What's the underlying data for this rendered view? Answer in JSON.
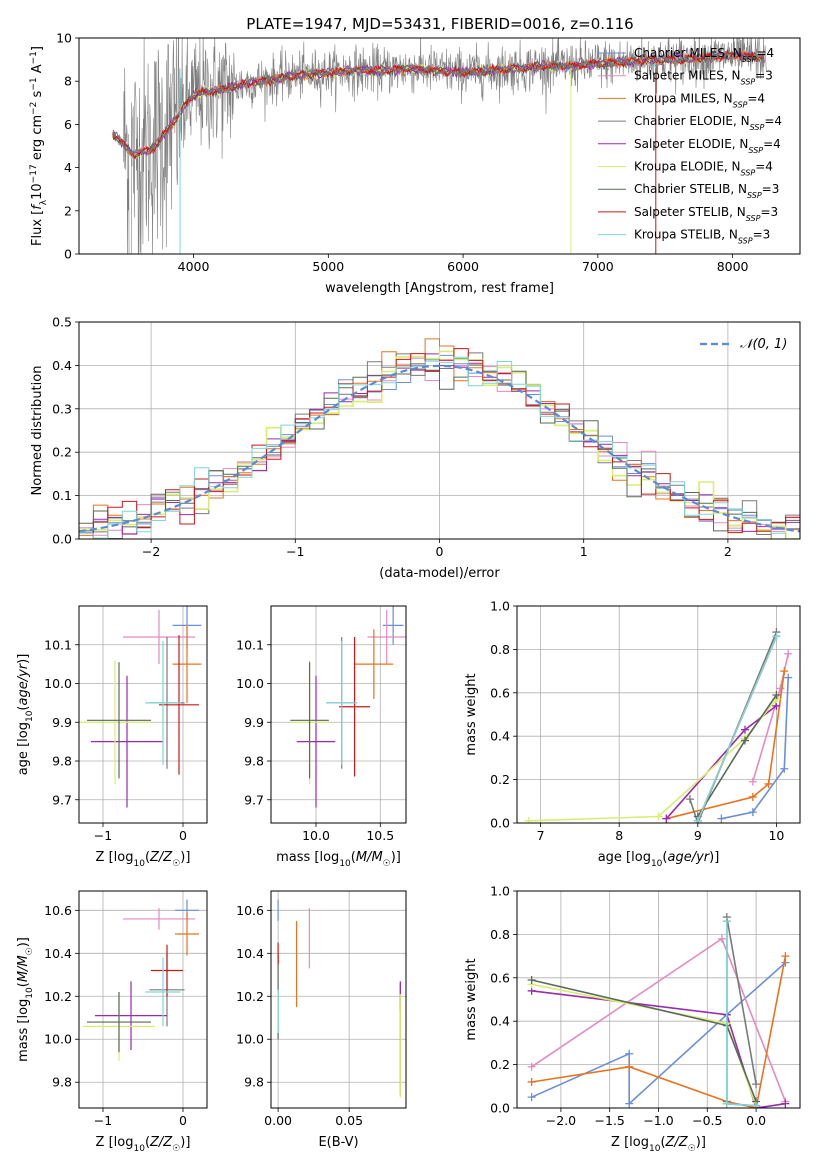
{
  "figure_title": "PLATE=1947, MJD=53431, FIBERID=0016, z=0.116",
  "colors": {
    "chabrier_miles": "#6a8fd8",
    "salpeter_miles": "#e58ac2",
    "kroupa_miles": "#e8731c",
    "chabrier_elodie": "#7a7a7a",
    "salpeter_elodie": "#9a2ab0",
    "kroupa_elodie": "#d8ee70",
    "chabrier_stelib": "#5a6a5a",
    "salpeter_stelib": "#c81818",
    "kroupa_stelib": "#7fd6d6",
    "normal_curve": "#5b8bd5",
    "grid": "#b0b0b0"
  },
  "chart_data": [
    {
      "id": "spectrum",
      "type": "line",
      "title": "PLATE=1947, MJD=53431, FIBERID=0016, z=0.116",
      "xlabel": "wavelength [Angstrom, rest frame]",
      "ylabel": "Flux [f_λ 10^-17 erg cm^-2 s^-1 A^-1]",
      "xlim": [
        3150,
        8500
      ],
      "ylim": [
        0,
        10
      ],
      "xticks": [
        "4000",
        "5000",
        "6000",
        "7000",
        "8000"
      ],
      "yticks": [
        "0",
        "2",
        "4",
        "6",
        "8",
        "10"
      ],
      "grid": false,
      "legend_position": "right",
      "legend": [
        "Chabrier MILES, N_SSP=4",
        "Salpeter MILES, N_SSP=3",
        "Kroupa MILES, N_SSP=4",
        "Chabrier ELODIE, N_SSP=4",
        "Salpeter ELODIE, N_SSP=4",
        "Kroupa ELODIE, N_SSP=4",
        "Chabrier STELIB, N_SSP=3",
        "Salpeter STELIB, N_SSP=3",
        "Kroupa STELIB, N_SSP=3"
      ],
      "continuum": {
        "x": [
          3400,
          3550,
          3700,
          3850,
          4000,
          4200,
          4400,
          4600,
          4800,
          5000,
          5200,
          5400,
          5600,
          5800,
          6000,
          6200,
          6400,
          6600,
          6800,
          7000,
          7200,
          7400,
          7600,
          7800,
          8000,
          8250
        ],
        "y": [
          5.6,
          4.6,
          4.9,
          6.1,
          7.4,
          7.6,
          7.9,
          8.1,
          8.3,
          8.4,
          8.5,
          8.5,
          8.6,
          8.5,
          8.4,
          8.5,
          8.6,
          8.7,
          8.7,
          8.8,
          8.9,
          9.0,
          9.0,
          9.1,
          9.2,
          9.1
        ]
      }
    },
    {
      "id": "residuals",
      "type": "histogram",
      "xlabel": "(data-model)/error",
      "ylabel": "Normed distribution",
      "xlim": [
        -2.5,
        2.5
      ],
      "ylim": [
        0,
        0.5
      ],
      "xticks": [
        "−2",
        "−1",
        "0",
        "1",
        "2"
      ],
      "yticks": [
        "0.0",
        "0.1",
        "0.2",
        "0.3",
        "0.4",
        "0.5"
      ],
      "grid": true,
      "legend_position": "top-right",
      "legend": [
        "𝒩(0, 1)"
      ],
      "bin_width": 0.1,
      "normal_curve": {
        "mean": 0,
        "sigma": 1
      }
    },
    {
      "id": "age_vs_Z",
      "type": "errorbar",
      "xlabel": "Z [log10(Z/Z☉)]",
      "ylabel": "age  [log10(age/yr)]",
      "xlim": [
        -1.3,
        0.3
      ],
      "ylim": [
        9.64,
        10.2
      ],
      "xticks": [
        "−1",
        "0"
      ],
      "yticks": [
        "9.7",
        "9.8",
        "9.9",
        "10.0",
        "10.1"
      ],
      "grid": true,
      "points": [
        {
          "series": "Chabrier MILES",
          "x": 0.05,
          "xerr": 0.18,
          "y": 10.15,
          "yerr": 0.06
        },
        {
          "series": "Salpeter MILES",
          "x": -0.3,
          "xerr": 0.45,
          "y": 10.12,
          "yerr": 0.07
        },
        {
          "series": "Kroupa MILES",
          "x": 0.05,
          "xerr": 0.18,
          "y": 10.05,
          "yerr": 0.1
        },
        {
          "series": "Chabrier ELODIE",
          "x": -0.2,
          "xerr": 0.22,
          "y": 9.95,
          "yerr": 0.17
        },
        {
          "series": "Salpeter ELODIE",
          "x": -0.7,
          "xerr": 0.45,
          "y": 9.85,
          "yerr": 0.17
        },
        {
          "series": "Kroupa ELODIE",
          "x": -0.85,
          "xerr": 0.45,
          "y": 9.9,
          "yerr": 0.16
        },
        {
          "series": "Chabrier STELIB",
          "x": -0.8,
          "xerr": 0.4,
          "y": 9.905,
          "yerr": 0.15
        },
        {
          "series": "Salpeter STELIB",
          "x": -0.05,
          "xerr": 0.25,
          "y": 9.945,
          "yerr": 0.18
        },
        {
          "series": "Kroupa STELIB",
          "x": -0.25,
          "xerr": 0.22,
          "y": 9.95,
          "yerr": 0.16
        }
      ]
    },
    {
      "id": "age_vs_mass",
      "type": "errorbar",
      "xlabel": "mass [log10(M/M☉)]",
      "ylabel": "",
      "xlim": [
        9.65,
        10.7
      ],
      "ylim": [
        9.64,
        10.2
      ],
      "xticks": [
        "10.0",
        "10.5"
      ],
      "yticks": [
        "9.7",
        "9.8",
        "9.9",
        "10.0",
        "10.1"
      ],
      "grid": true,
      "points": [
        {
          "series": "Chabrier MILES",
          "x": 10.6,
          "xerr": 0.08,
          "y": 10.15,
          "yerr": 0.05
        },
        {
          "series": "Salpeter MILES",
          "x": 10.55,
          "xerr": 0.15,
          "y": 10.12,
          "yerr": 0.07
        },
        {
          "series": "Kroupa MILES",
          "x": 10.45,
          "xerr": 0.15,
          "y": 10.05,
          "yerr": 0.09
        },
        {
          "series": "Chabrier ELODIE",
          "x": 10.2,
          "xerr": 0.12,
          "y": 9.95,
          "yerr": 0.17
        },
        {
          "series": "Salpeter ELODIE",
          "x": 10.0,
          "xerr": 0.15,
          "y": 9.85,
          "yerr": 0.17
        },
        {
          "series": "Kroupa ELODIE",
          "x": 9.95,
          "xerr": 0.15,
          "y": 9.9,
          "yerr": 0.16
        },
        {
          "series": "Chabrier STELIB",
          "x": 9.95,
          "xerr": 0.15,
          "y": 9.905,
          "yerr": 0.15
        },
        {
          "series": "Salpeter STELIB",
          "x": 10.3,
          "xerr": 0.12,
          "y": 9.94,
          "yerr": 0.18
        },
        {
          "series": "Kroupa STELIB",
          "x": 10.2,
          "xerr": 0.12,
          "y": 9.95,
          "yerr": 0.16
        }
      ]
    },
    {
      "id": "mass_weight_vs_age",
      "type": "line",
      "xlabel": "age  [log10(age/yr)]",
      "ylabel": "mass weight",
      "xlim": [
        6.7,
        10.3
      ],
      "ylim": [
        0,
        1
      ],
      "xticks": [
        "7",
        "8",
        "9",
        "10"
      ],
      "yticks": [
        "0.0",
        "0.2",
        "0.4",
        "0.6",
        "0.8",
        "1.0"
      ],
      "grid": true,
      "series": [
        {
          "name": "Chabrier MILES",
          "x": [
            9.3,
            9.7,
            10.1,
            10.15
          ],
          "y": [
            0.02,
            0.05,
            0.25,
            0.67
          ]
        },
        {
          "name": "Salpeter MILES",
          "x": [
            9.7,
            10.05,
            10.15
          ],
          "y": [
            0.19,
            0.62,
            0.78
          ]
        },
        {
          "name": "Kroupa MILES",
          "x": [
            8.6,
            9.7,
            9.9,
            10.1
          ],
          "y": [
            0.02,
            0.12,
            0.18,
            0.7
          ]
        },
        {
          "name": "Chabrier ELODIE",
          "x": [
            8.9,
            9.0,
            10.0
          ],
          "y": [
            0.11,
            0.0,
            0.88
          ]
        },
        {
          "name": "Salpeter ELODIE",
          "x": [
            8.6,
            9.6,
            10.0
          ],
          "y": [
            0.02,
            0.43,
            0.54
          ]
        },
        {
          "name": "Kroupa ELODIE",
          "x": [
            6.85,
            8.5,
            9.6,
            10.0
          ],
          "y": [
            0.01,
            0.03,
            0.39,
            0.57
          ]
        },
        {
          "name": "Chabrier STELIB",
          "x": [
            9.0,
            9.6,
            10.0
          ],
          "y": [
            0.03,
            0.38,
            0.59
          ]
        },
        {
          "name": "Salpeter STELIB",
          "x": [
            9.0,
            10.0
          ],
          "y": [
            0.01,
            0.86
          ]
        },
        {
          "name": "Kroupa STELIB",
          "x": [
            9.0,
            10.0
          ],
          "y": [
            0.01,
            0.86
          ]
        }
      ]
    },
    {
      "id": "mass_vs_Z",
      "type": "errorbar",
      "xlabel": "Z [log10(Z/Z☉)]",
      "ylabel": "mass [log10(M/M☉)]",
      "xlim": [
        -1.3,
        0.3
      ],
      "ylim": [
        9.68,
        10.69
      ],
      "xticks": [
        "−1",
        "0"
      ],
      "yticks": [
        "9.8",
        "10.0",
        "10.2",
        "10.4",
        "10.6"
      ],
      "grid": true,
      "points": [
        {
          "series": "Chabrier MILES",
          "x": 0.05,
          "xerr": 0.15,
          "y": 10.6,
          "yerr": 0.05
        },
        {
          "series": "Salpeter MILES",
          "x": -0.3,
          "xerr": 0.45,
          "y": 10.56,
          "yerr": 0.05
        },
        {
          "series": "Kroupa MILES",
          "x": 0.05,
          "xerr": 0.15,
          "y": 10.49,
          "yerr": 0.1
        },
        {
          "series": "Chabrier ELODIE",
          "x": -0.2,
          "xerr": 0.22,
          "y": 10.23,
          "yerr": 0.17
        },
        {
          "series": "Salpeter ELODIE",
          "x": -0.65,
          "xerr": 0.45,
          "y": 10.11,
          "yerr": 0.16
        },
        {
          "series": "Kroupa ELODIE",
          "x": -0.8,
          "xerr": 0.45,
          "y": 10.06,
          "yerr": 0.16
        },
        {
          "series": "Chabrier STELIB",
          "x": -0.8,
          "xerr": 0.4,
          "y": 10.08,
          "yerr": 0.14
        },
        {
          "series": "Salpeter STELIB",
          "x": -0.2,
          "xerr": 0.2,
          "y": 10.32,
          "yerr": 0.12
        },
        {
          "series": "Kroupa STELIB",
          "x": -0.25,
          "xerr": 0.22,
          "y": 10.22,
          "yerr": 0.16
        }
      ]
    },
    {
      "id": "mass_vs_ebv",
      "type": "errorbar",
      "xlabel": "E(B-V)",
      "ylabel": "",
      "xlim": [
        -0.005,
        0.09
      ],
      "ylim": [
        9.68,
        10.69
      ],
      "xticks": [
        "0.00",
        "0.05"
      ],
      "yticks": [
        "9.8",
        "10.0",
        "10.2",
        "10.4",
        "10.6"
      ],
      "grid": true,
      "points": [
        {
          "series": "Chabrier MILES",
          "x": 0.0,
          "xerr": 0,
          "y": 10.6,
          "yerr": 0.05
        },
        {
          "series": "Salpeter MILES",
          "x": 0.022,
          "xerr": 0,
          "y": 10.47,
          "yerr": 0.14
        },
        {
          "series": "Kroupa MILES",
          "x": 0.013,
          "xerr": 0,
          "y": 10.35,
          "yerr": 0.2
        },
        {
          "series": "Chabrier ELODIE",
          "x": 0.086,
          "xerr": 0,
          "y": 10.0,
          "yerr": 0.26
        },
        {
          "series": "Salpeter ELODIE",
          "x": 0.086,
          "xerr": 0,
          "y": 10.2,
          "yerr": 0.07
        },
        {
          "series": "Kroupa ELODIE",
          "x": 0.086,
          "xerr": 0,
          "y": 9.97,
          "yerr": 0.24
        },
        {
          "series": "Chabrier STELIB",
          "x": 0.0,
          "xerr": 0,
          "y": 10.2,
          "yerr": 0.2
        },
        {
          "series": "Salpeter STELIB",
          "x": 0.0,
          "xerr": 0,
          "y": 10.4,
          "yerr": 0.05
        },
        {
          "series": "Kroupa STELIB",
          "x": 0.0,
          "xerr": 0,
          "y": 10.13,
          "yerr": 0.1
        }
      ]
    },
    {
      "id": "mass_weight_vs_Z",
      "type": "line",
      "xlabel": "Z [log10(Z/Z☉)]",
      "ylabel": "mass weight",
      "xlim": [
        -2.45,
        0.45
      ],
      "ylim": [
        0,
        1
      ],
      "xticks": [
        "−2.0",
        "−1.5",
        "−1.0",
        "−0.5",
        "0.0"
      ],
      "yticks": [
        "0.0",
        "0.2",
        "0.4",
        "0.6",
        "0.8",
        "1.0"
      ],
      "grid": true,
      "series": [
        {
          "name": "Chabrier MILES",
          "x": [
            -2.3,
            -1.3,
            -1.3,
            -0.3,
            0.3
          ],
          "y": [
            0.05,
            0.25,
            0.02,
            0.43,
            0.67
          ]
        },
        {
          "name": "Salpeter MILES",
          "x": [
            -2.3,
            -0.35,
            0.3
          ],
          "y": [
            0.19,
            0.78,
            0.03
          ]
        },
        {
          "name": "Kroupa MILES",
          "x": [
            -2.3,
            -1.3,
            -0.3,
            0.0,
            0.3
          ],
          "y": [
            0.12,
            0.19,
            0.03,
            0.0,
            0.7
          ]
        },
        {
          "name": "Chabrier ELODIE",
          "x": [
            -0.3,
            -0.3,
            0.0
          ],
          "y": [
            0.03,
            0.88,
            0.11
          ]
        },
        {
          "name": "Salpeter ELODIE",
          "x": [
            -2.3,
            -0.3,
            0.0,
            0.3
          ],
          "y": [
            0.54,
            0.43,
            0.0,
            0.02
          ]
        },
        {
          "name": "Kroupa ELODIE",
          "x": [
            -2.3,
            -0.3,
            0.0
          ],
          "y": [
            0.57,
            0.39,
            0.01
          ]
        },
        {
          "name": "Chabrier STELIB",
          "x": [
            -2.3,
            -0.3,
            0.0
          ],
          "y": [
            0.59,
            0.38,
            0.03
          ]
        },
        {
          "name": "Salpeter STELIB",
          "x": [
            -0.3,
            -0.3,
            0.0
          ],
          "y": [
            0.86,
            0.02,
            0.01
          ]
        },
        {
          "name": "Kroupa STELIB",
          "x": [
            -0.3,
            -0.3,
            0.0
          ],
          "y": [
            0.86,
            0.02,
            0.01
          ]
        }
      ]
    }
  ]
}
